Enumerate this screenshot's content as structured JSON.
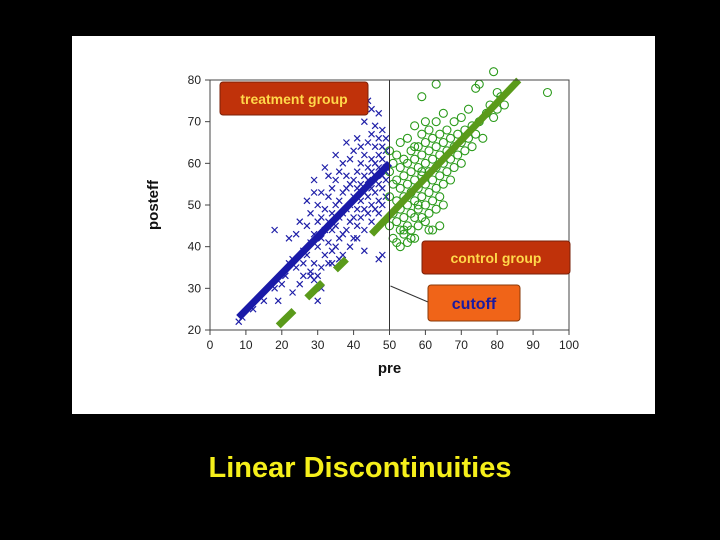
{
  "slide": {
    "title": "Linear Discontinuities"
  },
  "chart_data": {
    "type": "scatter",
    "xlabel": "pre",
    "ylabel": "posteff",
    "xlim": [
      0,
      100
    ],
    "ylim": [
      20,
      80
    ],
    "xticks": [
      0,
      10,
      20,
      30,
      40,
      50,
      60,
      70,
      80,
      90,
      100
    ],
    "yticks": [
      20,
      30,
      40,
      50,
      60,
      70,
      80
    ],
    "cutoff": 50,
    "grid": false,
    "annotations": {
      "treatment": "treatment group",
      "control": "control group",
      "cutoff": "cutoff"
    },
    "colors": {
      "treatment": "#1f1fa8",
      "control": "#2a9a1a",
      "regression_line_treatment": "#1a1aa8",
      "regression_line_control": "#5a9a1a",
      "label_box": "#c0320a",
      "label_text": "#ffd84a",
      "cutoff_box": "#f06418"
    },
    "series": [
      {
        "marker": "x",
        "color": "#1f1fa8",
        "points": [
          [
            8,
            22
          ],
          [
            9,
            23
          ],
          [
            12,
            25
          ],
          [
            15,
            27
          ],
          [
            18,
            30
          ],
          [
            18,
            44
          ],
          [
            19,
            27
          ],
          [
            20,
            31
          ],
          [
            21,
            33
          ],
          [
            22,
            42
          ],
          [
            22,
            36
          ],
          [
            23,
            29
          ],
          [
            23,
            37
          ],
          [
            24,
            43
          ],
          [
            24,
            35
          ],
          [
            25,
            31
          ],
          [
            25,
            46
          ],
          [
            26,
            39
          ],
          [
            26,
            33
          ],
          [
            27,
            38
          ],
          [
            27,
            45
          ],
          [
            27,
            51
          ],
          [
            28,
            34
          ],
          [
            28,
            41
          ],
          [
            28,
            48
          ],
          [
            29,
            36
          ],
          [
            29,
            43
          ],
          [
            29,
            53
          ],
          [
            29,
            56
          ],
          [
            30,
            33
          ],
          [
            30,
            40
          ],
          [
            30,
            46
          ],
          [
            30,
            50
          ],
          [
            31,
            35
          ],
          [
            31,
            42
          ],
          [
            31,
            47
          ],
          [
            31,
            53
          ],
          [
            32,
            38
          ],
          [
            32,
            44
          ],
          [
            32,
            49
          ],
          [
            32,
            59
          ],
          [
            33,
            36
          ],
          [
            33,
            41
          ],
          [
            33,
            46
          ],
          [
            33,
            52
          ],
          [
            33,
            57
          ],
          [
            34,
            39
          ],
          [
            34,
            44
          ],
          [
            34,
            48
          ],
          [
            34,
            54
          ],
          [
            35,
            40
          ],
          [
            35,
            45
          ],
          [
            35,
            50
          ],
          [
            35,
            56
          ],
          [
            35,
            62
          ],
          [
            36,
            42
          ],
          [
            36,
            47
          ],
          [
            36,
            51
          ],
          [
            36,
            58
          ],
          [
            37,
            38
          ],
          [
            37,
            43
          ],
          [
            37,
            48
          ],
          [
            37,
            53
          ],
          [
            37,
            60
          ],
          [
            38,
            44
          ],
          [
            38,
            49
          ],
          [
            38,
            54
          ],
          [
            38,
            57
          ],
          [
            38,
            65
          ],
          [
            39,
            46
          ],
          [
            39,
            50
          ],
          [
            39,
            55
          ],
          [
            39,
            61
          ],
          [
            40,
            42
          ],
          [
            40,
            47
          ],
          [
            40,
            52
          ],
          [
            40,
            56
          ],
          [
            40,
            63
          ],
          [
            41,
            45
          ],
          [
            41,
            49
          ],
          [
            41,
            54
          ],
          [
            41,
            58
          ],
          [
            41,
            66
          ],
          [
            42,
            47
          ],
          [
            42,
            51
          ],
          [
            42,
            55
          ],
          [
            42,
            60
          ],
          [
            42,
            64
          ],
          [
            43,
            44
          ],
          [
            43,
            49
          ],
          [
            43,
            53
          ],
          [
            43,
            57
          ],
          [
            43,
            62
          ],
          [
            43,
            70
          ],
          [
            44,
            48
          ],
          [
            44,
            52
          ],
          [
            44,
            56
          ],
          [
            44,
            59
          ],
          [
            44,
            65
          ],
          [
            44,
            75
          ],
          [
            45,
            46
          ],
          [
            45,
            50
          ],
          [
            45,
            54
          ],
          [
            45,
            58
          ],
          [
            45,
            61
          ],
          [
            45,
            67
          ],
          [
            45,
            73
          ],
          [
            46,
            49
          ],
          [
            46,
            53
          ],
          [
            46,
            57
          ],
          [
            46,
            60
          ],
          [
            46,
            64
          ],
          [
            46,
            69
          ],
          [
            47,
            48
          ],
          [
            47,
            51
          ],
          [
            47,
            55
          ],
          [
            47,
            59
          ],
          [
            47,
            62
          ],
          [
            47,
            66
          ],
          [
            47,
            72
          ],
          [
            48,
            50
          ],
          [
            48,
            54
          ],
          [
            48,
            57
          ],
          [
            48,
            61
          ],
          [
            48,
            64
          ],
          [
            48,
            68
          ],
          [
            49,
            52
          ],
          [
            49,
            56
          ],
          [
            49,
            59
          ],
          [
            49,
            63
          ],
          [
            49,
            66
          ],
          [
            49,
            58
          ],
          [
            48,
            38
          ],
          [
            47,
            37
          ],
          [
            43,
            39
          ],
          [
            41,
            42
          ],
          [
            39,
            40
          ],
          [
            36,
            37
          ],
          [
            34,
            36
          ],
          [
            31,
            30
          ],
          [
            28,
            33
          ],
          [
            26,
            36
          ],
          [
            30,
            27
          ],
          [
            29,
            32
          ]
        ]
      },
      {
        "marker": "o",
        "color": "#2a9a1a",
        "points": [
          [
            50,
            45
          ],
          [
            50,
            52
          ],
          [
            50,
            58
          ],
          [
            50,
            63
          ],
          [
            51,
            42
          ],
          [
            51,
            48
          ],
          [
            51,
            55
          ],
          [
            51,
            60
          ],
          [
            52,
            41
          ],
          [
            52,
            46
          ],
          [
            52,
            51
          ],
          [
            52,
            56
          ],
          [
            52,
            62
          ],
          [
            53,
            40
          ],
          [
            53,
            44
          ],
          [
            53,
            49
          ],
          [
            53,
            54
          ],
          [
            53,
            59
          ],
          [
            53,
            65
          ],
          [
            54,
            43
          ],
          [
            54,
            47
          ],
          [
            54,
            52
          ],
          [
            54,
            57
          ],
          [
            54,
            61
          ],
          [
            55,
            41
          ],
          [
            55,
            45
          ],
          [
            55,
            50
          ],
          [
            55,
            55
          ],
          [
            55,
            60
          ],
          [
            55,
            66
          ],
          [
            56,
            44
          ],
          [
            56,
            48
          ],
          [
            56,
            53
          ],
          [
            56,
            58
          ],
          [
            56,
            63
          ],
          [
            57,
            42
          ],
          [
            57,
            47
          ],
          [
            57,
            51
          ],
          [
            57,
            56
          ],
          [
            57,
            61
          ],
          [
            57,
            69
          ],
          [
            58,
            45
          ],
          [
            58,
            49
          ],
          [
            58,
            54
          ],
          [
            58,
            59
          ],
          [
            58,
            64
          ],
          [
            59,
            47
          ],
          [
            59,
            52
          ],
          [
            59,
            57
          ],
          [
            59,
            62
          ],
          [
            59,
            67
          ],
          [
            60,
            46
          ],
          [
            60,
            50
          ],
          [
            60,
            55
          ],
          [
            60,
            60
          ],
          [
            60,
            65
          ],
          [
            60,
            70
          ],
          [
            61,
            48
          ],
          [
            61,
            53
          ],
          [
            61,
            58
          ],
          [
            61,
            63
          ],
          [
            61,
            68
          ],
          [
            62,
            51
          ],
          [
            62,
            56
          ],
          [
            62,
            61
          ],
          [
            62,
            66
          ],
          [
            63,
            49
          ],
          [
            63,
            54
          ],
          [
            63,
            59
          ],
          [
            63,
            64
          ],
          [
            63,
            70
          ],
          [
            64,
            52
          ],
          [
            64,
            57
          ],
          [
            64,
            62
          ],
          [
            64,
            67
          ],
          [
            65,
            50
          ],
          [
            65,
            55
          ],
          [
            65,
            60
          ],
          [
            65,
            65
          ],
          [
            65,
            72
          ],
          [
            66,
            58
          ],
          [
            66,
            63
          ],
          [
            66,
            68
          ],
          [
            67,
            56
          ],
          [
            67,
            61
          ],
          [
            67,
            66
          ],
          [
            68,
            59
          ],
          [
            68,
            64
          ],
          [
            68,
            70
          ],
          [
            69,
            62
          ],
          [
            69,
            67
          ],
          [
            70,
            60
          ],
          [
            70,
            65
          ],
          [
            70,
            71
          ],
          [
            71,
            63
          ],
          [
            71,
            68
          ],
          [
            72,
            66
          ],
          [
            72,
            73
          ],
          [
            73,
            64
          ],
          [
            73,
            69
          ],
          [
            74,
            67
          ],
          [
            74,
            78
          ],
          [
            75,
            70
          ],
          [
            75,
            79
          ],
          [
            76,
            66
          ],
          [
            77,
            72
          ],
          [
            78,
            74
          ],
          [
            79,
            71
          ],
          [
            80,
            73
          ],
          [
            80,
            77
          ],
          [
            81,
            76
          ],
          [
            82,
            74
          ],
          [
            79,
            82
          ],
          [
            63,
            79
          ],
          [
            59,
            76
          ],
          [
            94,
            77
          ],
          [
            54,
            44
          ],
          [
            56,
            42
          ],
          [
            58,
            50
          ],
          [
            61,
            44
          ],
          [
            64,
            45
          ],
          [
            62,
            44
          ],
          [
            59,
            58
          ],
          [
            57,
            64
          ]
        ]
      }
    ],
    "regression_lines": [
      {
        "color": "#1a1aa8",
        "x": [
          8,
          50
        ],
        "y": [
          23,
          60
        ]
      },
      {
        "color": "#5a9a1a",
        "x": [
          45,
          86
        ],
        "y": [
          43,
          80
        ]
      },
      {
        "color": "#5a9a1a",
        "dashed": true,
        "x": [
          19,
          38
        ],
        "y": [
          21,
          37
        ]
      }
    ]
  }
}
